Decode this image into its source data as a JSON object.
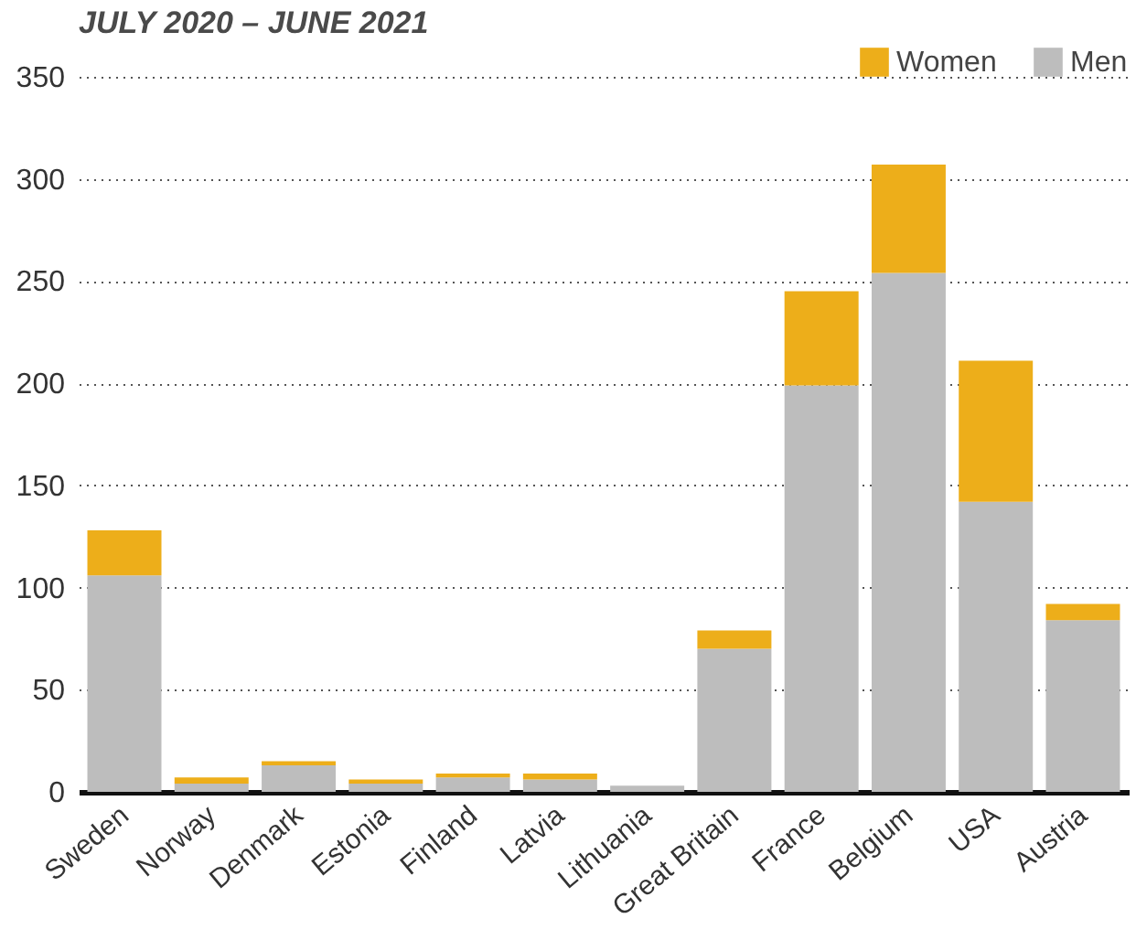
{
  "chart_data": {
    "type": "bar",
    "title": "JULY 2020 – JUNE 2021",
    "stacked": true,
    "categories": [
      "Sweden",
      "Norway",
      "Denmark",
      "Estonia",
      "Finland",
      "Latvia",
      "Lithuania",
      "Great Britain",
      "France",
      "Belgium",
      "USA",
      "Austria"
    ],
    "series": [
      {
        "name": "Men",
        "color": "#bdbdbd",
        "values": [
          106,
          4,
          13,
          4,
          7,
          6,
          3,
          70,
          199,
          254,
          142,
          84
        ]
      },
      {
        "name": "Women",
        "color": "#edae1a",
        "values": [
          22,
          3,
          2,
          2,
          2,
          3,
          0,
          9,
          46,
          53,
          69,
          8
        ]
      }
    ],
    "ylim": [
      0,
      350
    ],
    "yticks": [
      0,
      50,
      100,
      150,
      200,
      250,
      300,
      350
    ],
    "grid": "y",
    "legend": "top right"
  }
}
